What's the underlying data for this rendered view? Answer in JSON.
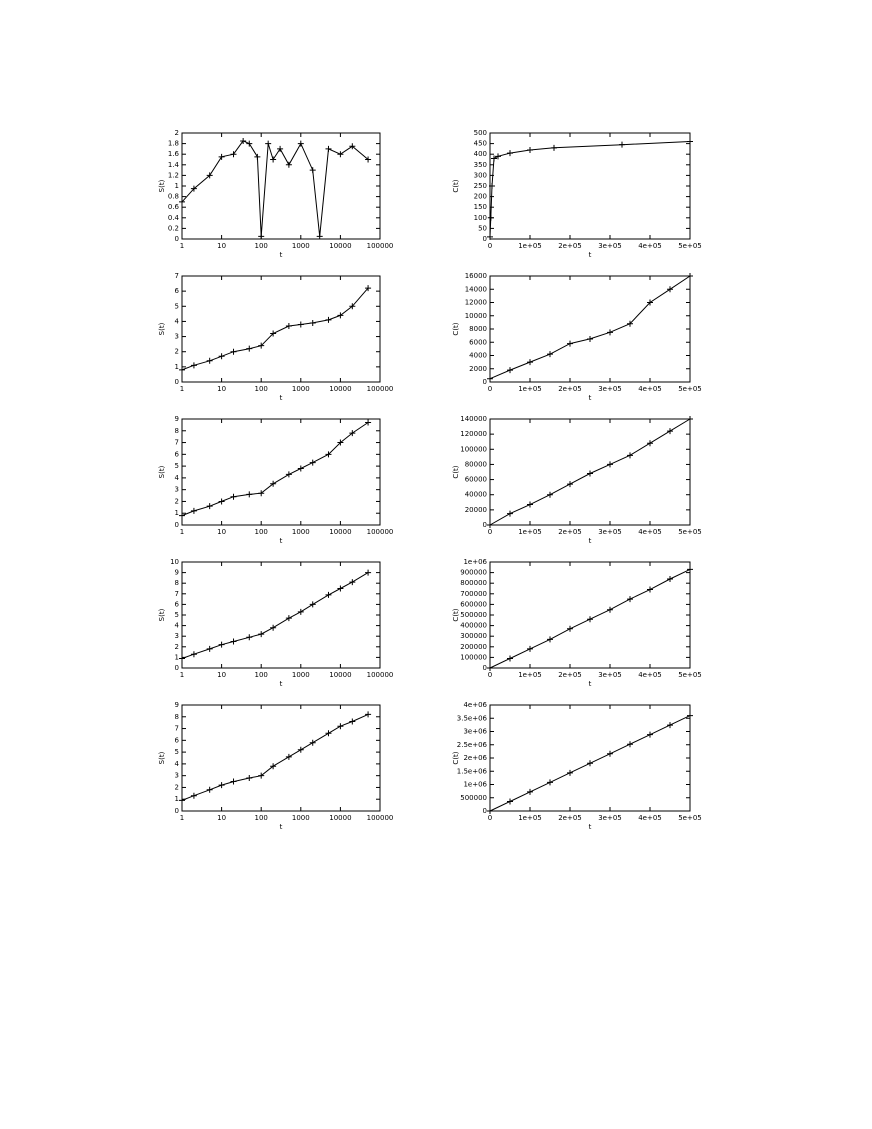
{
  "chart_data": [
    {
      "type": "line",
      "log_x": true,
      "xlabel": "t",
      "ylabel": "S(t)",
      "xlim": [
        1,
        100000
      ],
      "xticks": [
        1,
        10,
        100,
        1000,
        10000,
        100000
      ],
      "ylim": [
        0,
        2
      ],
      "yticks": [
        0,
        0.2,
        0.4,
        0.6,
        0.8,
        1,
        1.2,
        1.4,
        1.6,
        1.8,
        2
      ],
      "color": "#000000",
      "x": [
        1,
        2,
        5,
        10,
        20,
        35,
        50,
        80,
        100,
        150,
        200,
        300,
        500,
        1000,
        2000,
        3000,
        5000,
        10000,
        20000,
        50000
      ],
      "values": [
        0.7,
        0.95,
        1.2,
        1.55,
        1.6,
        1.85,
        1.8,
        1.55,
        0.05,
        1.8,
        1.5,
        1.7,
        1.4,
        1.8,
        1.3,
        0.05,
        1.7,
        1.6,
        1.75,
        1.5
      ]
    },
    {
      "type": "line",
      "log_x": false,
      "xlabel": "t",
      "ylabel": "C(t)",
      "xlim": [
        0,
        500000
      ],
      "xticks": [
        0,
        {
          "value": 100000,
          "label": "1e+05"
        },
        {
          "value": 200000,
          "label": "2e+05"
        },
        {
          "value": 300000,
          "label": "3e+05"
        },
        {
          "value": 400000,
          "label": "4e+05"
        },
        {
          "value": 500000,
          "label": "5e+05"
        }
      ],
      "ylim": [
        0,
        500
      ],
      "yticks": [
        0,
        50,
        100,
        150,
        200,
        250,
        300,
        350,
        400,
        450,
        500
      ],
      "color": "#000000",
      "x": [
        0,
        2000,
        5000,
        10000,
        20000,
        50000,
        100000,
        160000,
        330000,
        500000
      ],
      "values": [
        10,
        100,
        250,
        380,
        390,
        405,
        420,
        430,
        445,
        460
      ]
    },
    {
      "type": "line",
      "log_x": true,
      "xlabel": "t",
      "ylabel": "S(t)",
      "xlim": [
        1,
        100000
      ],
      "xticks": [
        1,
        10,
        100,
        1000,
        10000,
        100000
      ],
      "ylim": [
        0,
        7
      ],
      "yticks": [
        0,
        1,
        2,
        3,
        4,
        5,
        6,
        7
      ],
      "color": "#000000",
      "x": [
        1,
        2,
        5,
        10,
        20,
        50,
        100,
        200,
        500,
        1000,
        2000,
        5000,
        10000,
        20000,
        50000
      ],
      "values": [
        0.8,
        1.1,
        1.4,
        1.7,
        2,
        2.2,
        2.4,
        3.2,
        3.7,
        3.8,
        3.9,
        4.1,
        4.4,
        5,
        6.2
      ]
    },
    {
      "type": "line",
      "log_x": false,
      "xlabel": "t",
      "ylabel": "C(t)",
      "xlim": [
        0,
        500000
      ],
      "xticks": [
        0,
        {
          "value": 100000,
          "label": "1e+05"
        },
        {
          "value": 200000,
          "label": "2e+05"
        },
        {
          "value": 300000,
          "label": "3e+05"
        },
        {
          "value": 400000,
          "label": "4e+05"
        },
        {
          "value": 500000,
          "label": "5e+05"
        }
      ],
      "ylim": [
        0,
        16000
      ],
      "yticks": [
        0,
        2000,
        4000,
        6000,
        8000,
        10000,
        12000,
        14000,
        16000
      ],
      "color": "#000000",
      "x": [
        0,
        50000,
        100000,
        150000,
        200000,
        250000,
        300000,
        350000,
        400000,
        450000,
        500000
      ],
      "values": [
        500,
        1800,
        3000,
        4200,
        5800,
        6500,
        7500,
        8800,
        12000,
        14000,
        16000
      ]
    },
    {
      "type": "line",
      "log_x": true,
      "xlabel": "t",
      "ylabel": "S(t)",
      "xlim": [
        1,
        100000
      ],
      "xticks": [
        1,
        10,
        100,
        1000,
        10000,
        100000
      ],
      "ylim": [
        0,
        9
      ],
      "yticks": [
        0,
        1,
        2,
        3,
        4,
        5,
        6,
        7,
        8,
        9
      ],
      "color": "#000000",
      "x": [
        1,
        2,
        5,
        10,
        20,
        50,
        100,
        200,
        500,
        1000,
        2000,
        5000,
        10000,
        20000,
        50000
      ],
      "values": [
        0.8,
        1.2,
        1.6,
        2,
        2.4,
        2.6,
        2.7,
        3.5,
        4.3,
        4.8,
        5.3,
        6,
        7,
        7.8,
        8.7
      ]
    },
    {
      "type": "line",
      "log_x": false,
      "xlabel": "t",
      "ylabel": "C(t)",
      "xlim": [
        0,
        500000
      ],
      "xticks": [
        0,
        {
          "value": 100000,
          "label": "1e+05"
        },
        {
          "value": 200000,
          "label": "2e+05"
        },
        {
          "value": 300000,
          "label": "3e+05"
        },
        {
          "value": 400000,
          "label": "4e+05"
        },
        {
          "value": 500000,
          "label": "5e+05"
        }
      ],
      "ylim": [
        0,
        140000
      ],
      "yticks": [
        0,
        20000,
        40000,
        60000,
        80000,
        100000,
        120000,
        140000
      ],
      "color": "#000000",
      "x": [
        0,
        50000,
        100000,
        150000,
        200000,
        250000,
        300000,
        350000,
        400000,
        450000,
        500000
      ],
      "values": [
        0,
        15000,
        27000,
        40000,
        54000,
        68000,
        80000,
        92000,
        108000,
        124000,
        140000
      ]
    },
    {
      "type": "line",
      "log_x": true,
      "xlabel": "t",
      "ylabel": "S(t)",
      "xlim": [
        1,
        100000
      ],
      "xticks": [
        1,
        10,
        100,
        1000,
        10000,
        100000
      ],
      "ylim": [
        0,
        10
      ],
      "yticks": [
        0,
        1,
        2,
        3,
        4,
        5,
        6,
        7,
        8,
        9,
        10
      ],
      "color": "#000000",
      "x": [
        1,
        2,
        5,
        10,
        20,
        50,
        100,
        200,
        500,
        1000,
        2000,
        5000,
        10000,
        20000,
        50000
      ],
      "values": [
        0.9,
        1.3,
        1.8,
        2.2,
        2.5,
        2.9,
        3.2,
        3.8,
        4.7,
        5.3,
        6,
        6.9,
        7.5,
        8.1,
        9
      ]
    },
    {
      "type": "line",
      "log_x": false,
      "xlabel": "t",
      "ylabel": "C(t)",
      "xlim": [
        0,
        500000
      ],
      "xticks": [
        0,
        {
          "value": 100000,
          "label": "1e+05"
        },
        {
          "value": 200000,
          "label": "2e+05"
        },
        {
          "value": 300000,
          "label": "3e+05"
        },
        {
          "value": 400000,
          "label": "4e+05"
        },
        {
          "value": 500000,
          "label": "5e+05"
        }
      ],
      "ylim": [
        0,
        1000000
      ],
      "yticks": [
        0,
        100000,
        200000,
        300000,
        400000,
        500000,
        600000,
        700000,
        800000,
        900000,
        {
          "value": 1000000,
          "label": "1e+06"
        }
      ],
      "color": "#000000",
      "x": [
        0,
        50000,
        100000,
        150000,
        200000,
        250000,
        300000,
        350000,
        400000,
        450000,
        500000
      ],
      "values": [
        0,
        90000,
        180000,
        270000,
        370000,
        460000,
        550000,
        650000,
        740000,
        840000,
        930000
      ]
    },
    {
      "type": "line",
      "log_x": true,
      "xlabel": "t",
      "ylabel": "S(t)",
      "xlim": [
        1,
        100000
      ],
      "xticks": [
        1,
        10,
        100,
        1000,
        10000,
        100000
      ],
      "ylim": [
        0,
        9
      ],
      "yticks": [
        0,
        1,
        2,
        3,
        4,
        5,
        6,
        7,
        8,
        9
      ],
      "color": "#000000",
      "x": [
        1,
        2,
        5,
        10,
        20,
        50,
        100,
        200,
        500,
        1000,
        2000,
        5000,
        10000,
        20000,
        50000
      ],
      "values": [
        0.9,
        1.3,
        1.8,
        2.2,
        2.5,
        2.8,
        3,
        3.8,
        4.6,
        5.2,
        5.8,
        6.6,
        7.2,
        7.6,
        8.2
      ]
    },
    {
      "type": "line",
      "log_x": false,
      "xlabel": "t",
      "ylabel": "C(t)",
      "xlim": [
        0,
        500000
      ],
      "xticks": [
        0,
        {
          "value": 100000,
          "label": "1e+05"
        },
        {
          "value": 200000,
          "label": "2e+05"
        },
        {
          "value": 300000,
          "label": "3e+05"
        },
        {
          "value": 400000,
          "label": "4e+05"
        },
        {
          "value": 500000,
          "label": "5e+05"
        }
      ],
      "ylim": [
        0,
        4000000
      ],
      "yticks": [
        0,
        500000,
        {
          "value": 1000000,
          "label": "1e+06"
        },
        {
          "value": 1500000,
          "label": "1.5e+06"
        },
        {
          "value": 2000000,
          "label": "2e+06"
        },
        {
          "value": 2500000,
          "label": "2.5e+06"
        },
        {
          "value": 3000000,
          "label": "3e+06"
        },
        {
          "value": 3500000,
          "label": "3.5e+06"
        },
        {
          "value": 4000000,
          "label": "4e+06"
        }
      ],
      "color": "#000000",
      "x": [
        0,
        50000,
        100000,
        150000,
        200000,
        250000,
        300000,
        350000,
        400000,
        450000,
        500000
      ],
      "values": [
        0,
        360000,
        720000,
        1080000,
        1440000,
        1800000,
        2160000,
        2520000,
        2880000,
        3240000,
        3600000
      ]
    }
  ]
}
